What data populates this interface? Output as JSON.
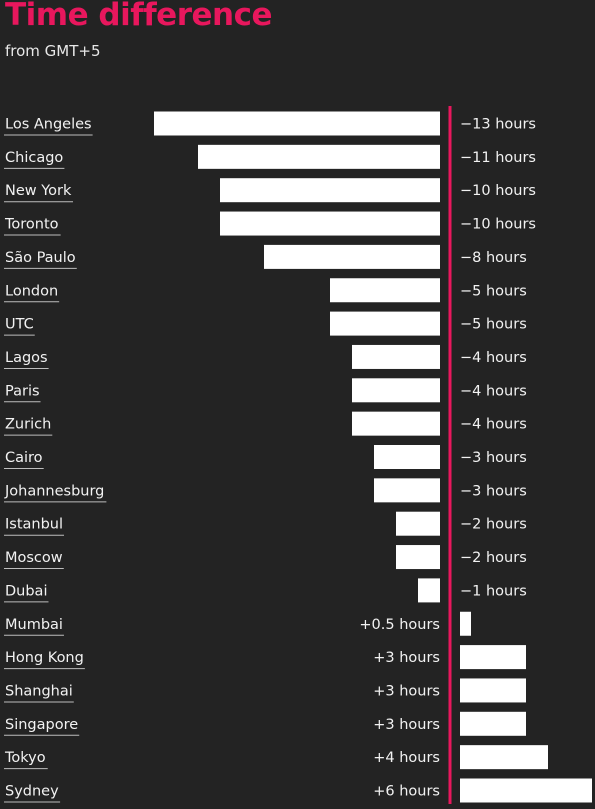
{
  "header": {
    "title": "Time difference",
    "subtitle": "from GMT+5"
  },
  "colors": {
    "background": "#232323",
    "title": "#e8175d",
    "bar": "#ffffff",
    "zero_line": "#e8175d",
    "text": "#f2f2f2"
  },
  "chart_data": {
    "type": "bar",
    "orientation": "horizontal",
    "title": "Time difference",
    "subtitle": "from GMT+5",
    "categories": [
      "Los Angeles",
      "Chicago",
      "New York",
      "Toronto",
      "São Paulo",
      "London",
      "UTC",
      "Lagos",
      "Paris",
      "Zurich",
      "Cairo",
      "Johannesburg",
      "Istanbul",
      "Moscow",
      "Dubai",
      "Mumbai",
      "Hong Kong",
      "Shanghai",
      "Singapore",
      "Tokyo",
      "Sydney"
    ],
    "values": [
      -13,
      -11,
      -10,
      -10,
      -8,
      -5,
      -5,
      -4,
      -4,
      -4,
      -3,
      -3,
      -2,
      -2,
      -1,
      0.5,
      3,
      3,
      3,
      4,
      6
    ],
    "labels": [
      "−13 hours",
      "−11 hours",
      "−10 hours",
      "−10 hours",
      "−8 hours",
      "−5 hours",
      "−5 hours",
      "−4 hours",
      "−4 hours",
      "−4 hours",
      "−3 hours",
      "−3 hours",
      "−2 hours",
      "−2 hours",
      "−1 hours",
      "+0.5 hours",
      "+3 hours",
      "+3 hours",
      "+3 hours",
      "+4 hours",
      "+6 hours"
    ],
    "xlim": [
      -13.1,
      6.4
    ],
    "grid": false,
    "legend": "none"
  }
}
